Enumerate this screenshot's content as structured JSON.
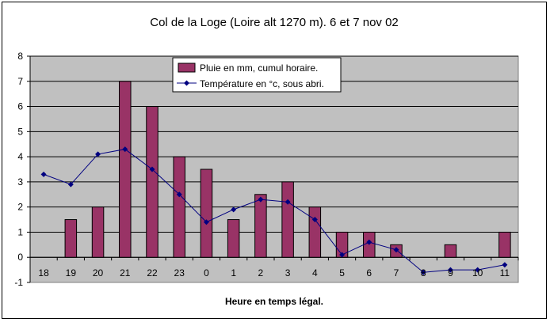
{
  "chart_data": {
    "type": "bar",
    "title": "Col de la Loge (Loire alt 1270 m). 6 et 7 nov 02",
    "xlabel": "Heure en temps légal.",
    "ylabel": "",
    "ylim": [
      -1,
      8
    ],
    "yticks": [
      -1,
      0,
      1,
      2,
      3,
      4,
      5,
      6,
      7,
      8
    ],
    "categories": [
      "18",
      "19",
      "20",
      "21",
      "22",
      "23",
      "0",
      "1",
      "2",
      "3",
      "4",
      "5",
      "6",
      "7",
      "8",
      "9",
      "10",
      "11"
    ],
    "grid": true,
    "legend_position": "top-center",
    "series": [
      {
        "name": "Pluie en mm, cumul horaire.",
        "type": "bar",
        "color": "#993366",
        "values": [
          0,
          1.5,
          2,
          7,
          6,
          4,
          3.5,
          1.5,
          2.5,
          3,
          2,
          1,
          1,
          0.5,
          0,
          0.5,
          0,
          1
        ]
      },
      {
        "name": "Température en °c, sous abri.",
        "type": "line",
        "color": "#000080",
        "values": [
          3.3,
          2.9,
          4.1,
          4.3,
          3.5,
          2.5,
          1.4,
          1.9,
          2.3,
          2.2,
          1.5,
          0.1,
          0.6,
          0.3,
          -0.6,
          -0.5,
          -0.5,
          -0.3
        ]
      }
    ]
  },
  "colors": {
    "plot_background": "#c0c0c0",
    "gridline": "#000000"
  }
}
